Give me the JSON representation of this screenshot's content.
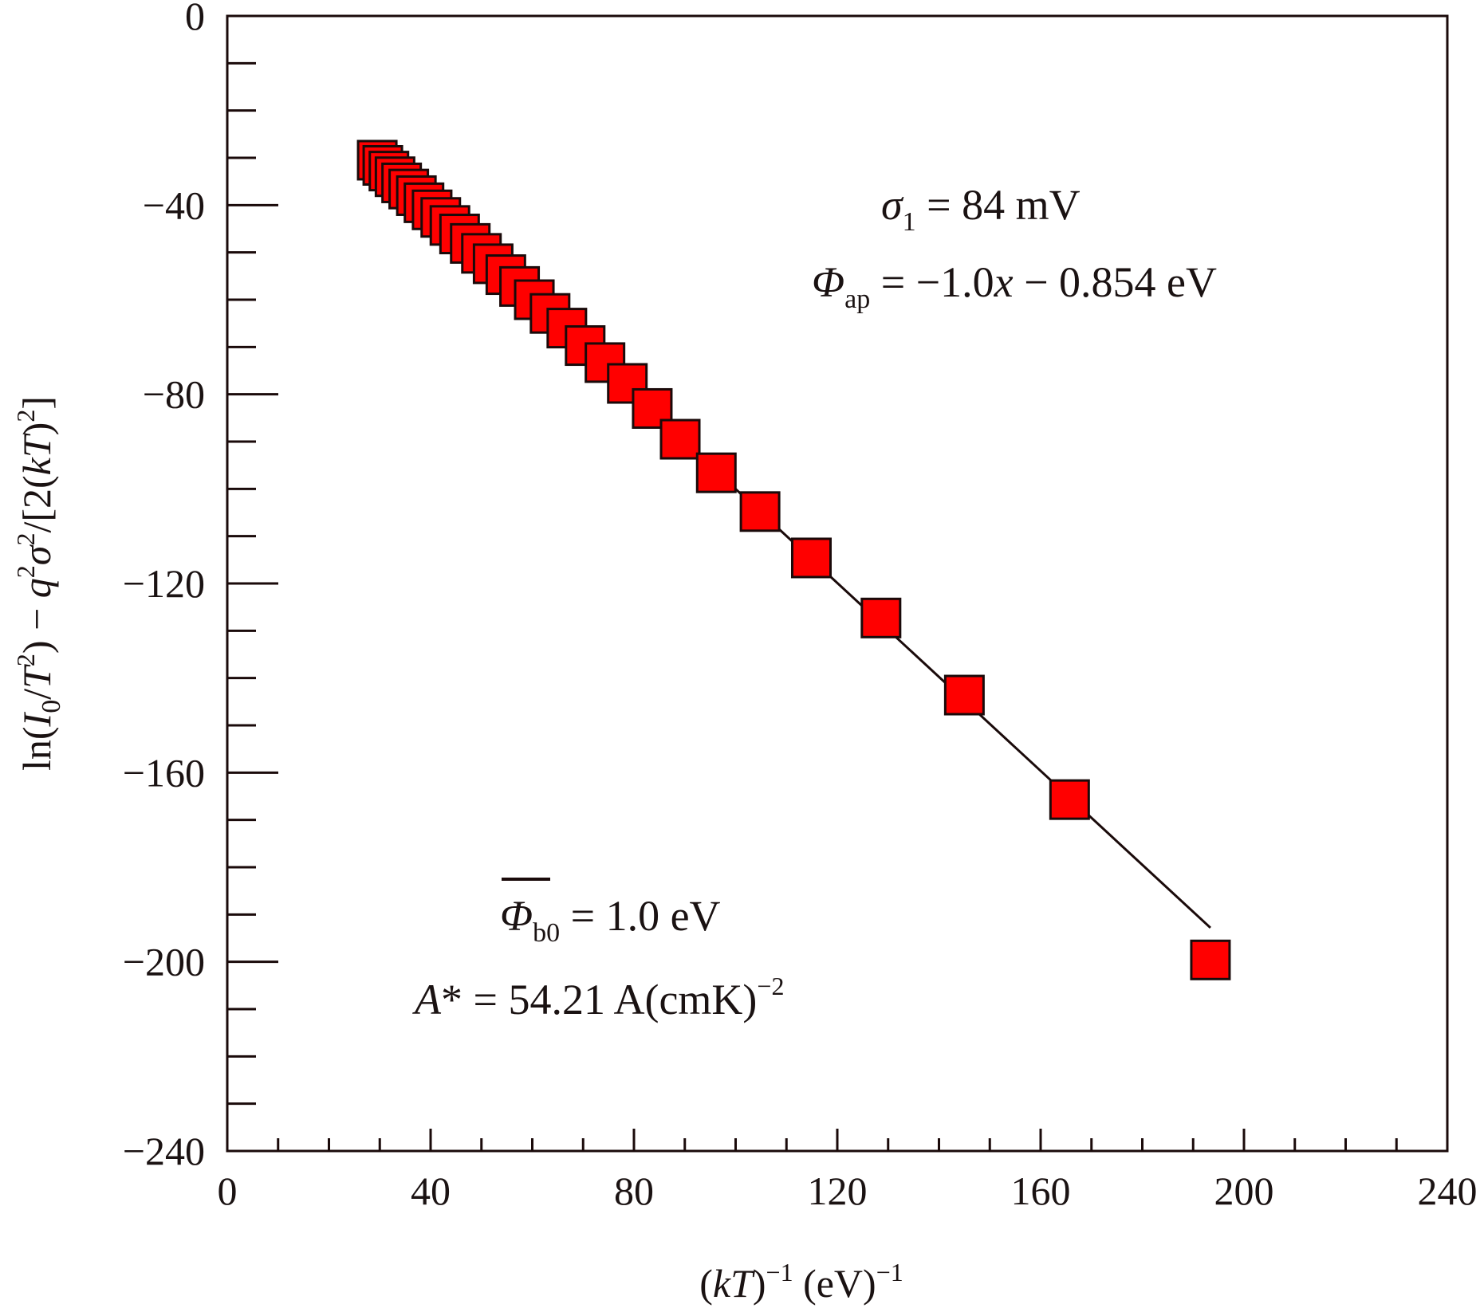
{
  "chart_data": {
    "type": "scatter",
    "title": "",
    "xlabel": "(kT)⁻¹ (eV)⁻¹",
    "ylabel": "ln(I₀/T²) − q²σ²/[2(kT)²]",
    "xlim": [
      0,
      240
    ],
    "ylim": [
      -240,
      0
    ],
    "xticks": [
      "0",
      "40",
      "80",
      "120",
      "160",
      "200",
      "240"
    ],
    "yticks": [
      "0",
      "−40",
      "−80",
      "−120",
      "−160",
      "−200",
      "−240"
    ],
    "grid": false,
    "marker": {
      "shape": "square",
      "fill": "#ff0000",
      "edge": "#1a0a0a"
    },
    "series": [
      {
        "x": [
          29.5,
          30.6,
          31.8,
          33.0,
          34.3,
          35.7,
          37.2,
          38.7,
          40.3,
          42.0,
          43.8,
          45.7,
          47.8,
          50.0,
          52.3,
          54.8,
          57.5,
          60.4,
          63.5,
          66.8,
          70.4,
          74.3,
          78.7,
          83.6,
          89.1,
          96.2,
          104.8,
          114.9,
          128.6,
          145.0,
          165.7,
          193.4
        ],
        "y": [
          -30.5,
          -31.6,
          -32.8,
          -34.0,
          -35.3,
          -36.6,
          -38.0,
          -39.5,
          -41.0,
          -42.6,
          -44.3,
          -46.1,
          -48.1,
          -50.2,
          -52.4,
          -54.7,
          -57.2,
          -60.0,
          -62.9,
          -66.0,
          -69.7,
          -73.3,
          -77.7,
          -83.0,
          -89.5,
          -96.6,
          -104.8,
          -114.6,
          -127.3,
          -143.6,
          -165.7,
          -199.6
        ]
      }
    ],
    "fit_line": {
      "x": [
        29.5,
        193.4
      ],
      "y": [
        -30.0,
        -192.8
      ]
    },
    "annotations": {
      "sigma": {
        "symbol": "σ",
        "sub": "1",
        "text": " = 84 mV"
      },
      "phi_ap": {
        "symbol": "Φ",
        "sub": "ap",
        "text1": " = −1.0",
        "var": "x",
        "text2": " − 0.854 eV"
      },
      "phi_b0": {
        "symbol": "Φ",
        "sub": "b0",
        "text": " = 1.0 eV"
      },
      "a_star": {
        "symbol": "A",
        "text": "* = 54.21 A(cmK)",
        "sup": "−2"
      }
    }
  }
}
